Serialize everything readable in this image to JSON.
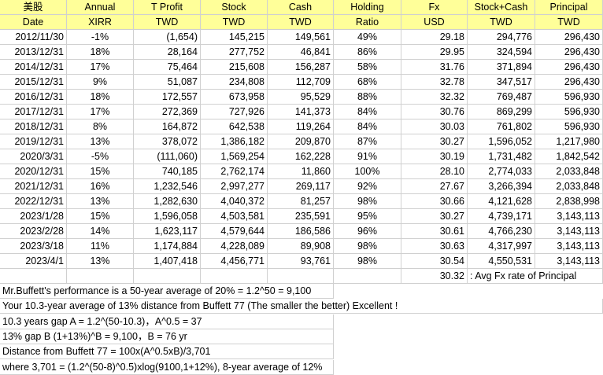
{
  "header_row1": [
    "美股",
    "Annual",
    "T Profit",
    "Stock",
    "Cash",
    "Holding",
    "Fx",
    "Stock+Cash",
    "Principal"
  ],
  "header_row2": [
    "Date",
    "XIRR",
    "TWD",
    "TWD",
    "TWD",
    "Ratio",
    "USD",
    "TWD",
    "TWD"
  ],
  "rows": [
    [
      "2012/11/30",
      "-1%",
      "(1,654)",
      "145,215",
      "149,561",
      "49%",
      "29.18",
      "294,776",
      "296,430"
    ],
    [
      "2013/12/31",
      "18%",
      "28,164",
      "277,752",
      "46,841",
      "86%",
      "29.95",
      "324,594",
      "296,430"
    ],
    [
      "2014/12/31",
      "17%",
      "75,464",
      "215,608",
      "156,287",
      "58%",
      "31.76",
      "371,894",
      "296,430"
    ],
    [
      "2015/12/31",
      "9%",
      "51,087",
      "234,808",
      "112,709",
      "68%",
      "32.78",
      "347,517",
      "296,430"
    ],
    [
      "2016/12/31",
      "18%",
      "172,557",
      "673,958",
      "95,529",
      "88%",
      "32.32",
      "769,487",
      "596,930"
    ],
    [
      "2017/12/31",
      "17%",
      "272,369",
      "727,926",
      "141,373",
      "84%",
      "30.76",
      "869,299",
      "596,930"
    ],
    [
      "2018/12/31",
      "8%",
      "164,872",
      "642,538",
      "119,264",
      "84%",
      "30.03",
      "761,802",
      "596,930"
    ],
    [
      "2019/12/31",
      "13%",
      "378,072",
      "1,386,182",
      "209,870",
      "87%",
      "30.27",
      "1,596,052",
      "1,217,980"
    ],
    [
      "2020/3/31",
      "-5%",
      "(111,060)",
      "1,569,254",
      "162,228",
      "91%",
      "30.19",
      "1,731,482",
      "1,842,542"
    ],
    [
      "2020/12/31",
      "15%",
      "740,185",
      "2,762,174",
      "11,860",
      "100%",
      "28.10",
      "2,774,033",
      "2,033,848"
    ],
    [
      "2021/12/31",
      "16%",
      "1,232,546",
      "2,997,277",
      "269,117",
      "92%",
      "27.67",
      "3,266,394",
      "2,033,848"
    ],
    [
      "2022/12/31",
      "13%",
      "1,282,630",
      "4,040,372",
      "81,257",
      "98%",
      "30.66",
      "4,121,628",
      "2,838,998"
    ],
    [
      "2023/1/28",
      "15%",
      "1,596,058",
      "4,503,581",
      "235,591",
      "95%",
      "30.27",
      "4,739,171",
      "3,143,113"
    ],
    [
      "2023/2/28",
      "14%",
      "1,623,117",
      "4,579,644",
      "186,586",
      "96%",
      "30.61",
      "4,766,230",
      "3,143,113"
    ],
    [
      "2023/3/18",
      "11%",
      "1,174,884",
      "4,228,089",
      "89,908",
      "98%",
      "30.63",
      "4,317,997",
      "3,143,113"
    ],
    [
      "2023/4/1",
      "13%",
      "1,407,418",
      "4,456,771",
      "93,761",
      "98%",
      "30.54",
      "4,550,531",
      "3,143,113"
    ]
  ],
  "avg_fx": {
    "value": "30.32",
    "label": ": Avg Fx rate of Principal"
  },
  "notes": [
    "Mr.Buffett's performance is a 50-year average of 20% = 1.2^50 = 9,100",
    "Your 10.3-year average of 13% distance from Buffett 77 (The smaller the better) Excellent !",
    "10.3 years gap A = 1.2^(50-10.3)，A^0.5 = 37",
    "13% gap B (1+13%)^B = 9,100，B = 76 yr",
    "Distance from Buffett 77 = 100x(A^0.5xB)/3,701",
    "   where 3,701 = (1.2^(50-8)^0.5)xlog(9100,1+12%), 8-year average of 12%"
  ],
  "colors": {
    "header_bg": "#ffff99",
    "grid": "#d0d0d0",
    "background": "#ffffff"
  }
}
